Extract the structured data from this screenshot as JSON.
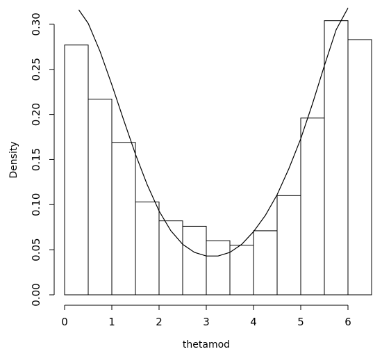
{
  "chart_data": {
    "type": "bar",
    "xlabel": "thetamod",
    "ylabel": "Density",
    "xlim": [
      0,
      6.5
    ],
    "ylim": [
      0,
      0.3
    ],
    "x_ticks": [
      0,
      1,
      2,
      3,
      4,
      5,
      6
    ],
    "y_ticks": [
      "0.00",
      "0.05",
      "0.10",
      "0.15",
      "0.20",
      "0.25",
      "0.30"
    ],
    "bins": [
      {
        "x0": 0.0,
        "x1": 0.5,
        "density": 0.277
      },
      {
        "x0": 0.5,
        "x1": 1.0,
        "density": 0.217
      },
      {
        "x0": 1.0,
        "x1": 1.5,
        "density": 0.169
      },
      {
        "x0": 1.5,
        "x1": 2.0,
        "density": 0.103
      },
      {
        "x0": 2.0,
        "x1": 2.5,
        "density": 0.082
      },
      {
        "x0": 2.5,
        "x1": 3.0,
        "density": 0.076
      },
      {
        "x0": 3.0,
        "x1": 3.5,
        "density": 0.06
      },
      {
        "x0": 3.5,
        "x1": 4.0,
        "density": 0.055
      },
      {
        "x0": 4.0,
        "x1": 4.5,
        "density": 0.071
      },
      {
        "x0": 4.5,
        "x1": 5.0,
        "density": 0.11
      },
      {
        "x0": 5.0,
        "x1": 5.5,
        "density": 0.196
      },
      {
        "x0": 5.5,
        "x1": 6.0,
        "density": 0.304
      },
      {
        "x0": 6.0,
        "x1": 6.5,
        "density": 0.283
      }
    ],
    "curve": {
      "x_range": [
        0.3,
        6.0
      ],
      "points": [
        [
          0.3,
          0.316
        ],
        [
          0.5,
          0.301
        ],
        [
          0.75,
          0.27
        ],
        [
          1.0,
          0.233
        ],
        [
          1.25,
          0.194
        ],
        [
          1.5,
          0.156
        ],
        [
          1.75,
          0.122
        ],
        [
          2.0,
          0.093
        ],
        [
          2.25,
          0.071
        ],
        [
          2.5,
          0.056
        ],
        [
          2.75,
          0.047
        ],
        [
          3.0,
          0.043
        ],
        [
          3.25,
          0.043
        ],
        [
          3.5,
          0.047
        ],
        [
          3.75,
          0.056
        ],
        [
          4.0,
          0.07
        ],
        [
          4.25,
          0.088
        ],
        [
          4.5,
          0.111
        ],
        [
          4.75,
          0.14
        ],
        [
          5.0,
          0.173
        ],
        [
          5.25,
          0.212
        ],
        [
          5.5,
          0.254
        ],
        [
          5.75,
          0.294
        ],
        [
          6.0,
          0.318
        ]
      ]
    },
    "grid": false,
    "legend": "none"
  }
}
